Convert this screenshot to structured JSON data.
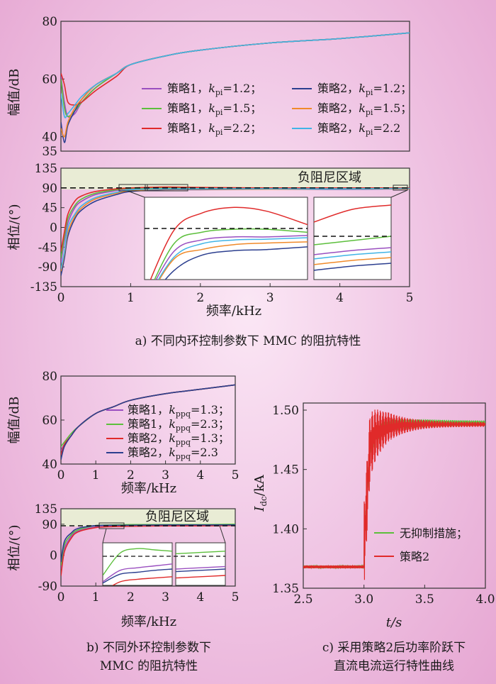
{
  "colors": {
    "purple": "#9a4fc0",
    "green": "#5cbf3c",
    "red": "#e02a2a",
    "navy": "#2c3f8f",
    "orange": "#f08a2a",
    "cyan": "#40b4e6",
    "band": "#e9ecd5"
  },
  "panel_a": {
    "caption": "a) 不同内环控制参数下 MMC 的阻抗特性",
    "mag": {
      "ylabel": "幅值/dB",
      "yticks": [
        "80",
        "60",
        "40",
        "35"
      ],
      "yvals": [
        80,
        60,
        40,
        35
      ]
    },
    "phase": {
      "ylabel": "相位/(°)",
      "yticks": [
        "135",
        "90",
        "45",
        "0",
        "-45",
        "-90",
        "-135"
      ],
      "yvals": [
        135,
        90,
        45,
        0,
        -45,
        -90,
        -135
      ],
      "band_label": "负阻尼区域"
    },
    "xticks": [
      "0",
      "1",
      "2",
      "3",
      "4",
      "5"
    ],
    "xlabel": "频率/kHz",
    "legend": [
      {
        "text": "策略1，",
        "sym": "k",
        "sub": "pi",
        "val": "=1.2；",
        "color": "purple"
      },
      {
        "text": "策略2，",
        "sym": "k",
        "sub": "pi",
        "val": "=1.2；",
        "color": "navy"
      },
      {
        "text": "策略1，",
        "sym": "k",
        "sub": "pi",
        "val": "=1.5；",
        "color": "green"
      },
      {
        "text": "策略2，",
        "sym": "k",
        "sub": "pi",
        "val": "=1.5；",
        "color": "orange"
      },
      {
        "text": "策略1，",
        "sym": "k",
        "sub": "pi",
        "val": "=2.2；",
        "color": "red"
      },
      {
        "text": "策略2，",
        "sym": "k",
        "sub": "pi",
        "val": "=2.2",
        "color": "cyan"
      }
    ]
  },
  "panel_b": {
    "caption_line1": "b) 不同外环控制参数下",
    "caption_line2": "MMC 的阻抗特性",
    "mag": {
      "ylabel": "幅值/dB",
      "yticks": [
        "80",
        "60",
        "40"
      ],
      "yvals": [
        80,
        60,
        40
      ]
    },
    "phase": {
      "ylabel": "相位/(°)",
      "yticks": [
        "135",
        "90",
        "0",
        "-90"
      ],
      "yvals": [
        135,
        90,
        0,
        -90
      ],
      "band_label": "负阻尼区域"
    },
    "xticks": [
      "0",
      "1",
      "2",
      "3",
      "4",
      "5"
    ],
    "xlabel": "频率/kHz",
    "legend": [
      {
        "text": "策略1，",
        "sym": "k",
        "sub": "ppq",
        "val": "=1.3；",
        "color": "purple"
      },
      {
        "text": "策略1，",
        "sym": "k",
        "sub": "ppq",
        "val": "=2.3；",
        "color": "green"
      },
      {
        "text": "策略2，",
        "sym": "k",
        "sub": "ppq",
        "val": "=1.3；",
        "color": "red"
      },
      {
        "text": "策略2，",
        "sym": "k",
        "sub": "ppq",
        "val": "=2.3",
        "color": "navy"
      }
    ]
  },
  "panel_c": {
    "caption_line1": "c) 采用策略2后功率阶跃下",
    "caption_line2": "直流电流运行特性曲线",
    "ylabel_main": "I",
    "ylabel_sub": "dc",
    "ylabel_unit": "/kA",
    "xlabel": "t/s",
    "yticks": [
      "1.50",
      "1.45",
      "1.40",
      "1.35"
    ],
    "xticks": [
      "2.5",
      "3.0",
      "3.5",
      "4.0"
    ],
    "legend": [
      {
        "text": "无抑制措施；",
        "color": "green"
      },
      {
        "text": "策略2",
        "color": "red"
      }
    ]
  },
  "chart_data": [
    {
      "type": "line",
      "xlabel": "频率/kHz",
      "ylabel": "幅值/dB",
      "ylim": [
        35,
        80
      ],
      "x": [
        0,
        0.05,
        0.1,
        0.2,
        0.3,
        0.5,
        0.8,
        1,
        1.5,
        2,
        3,
        4,
        5
      ],
      "series": [
        {
          "name": "策略1，kpi=1.2",
          "values": [
            61,
            52,
            47,
            48,
            52,
            57,
            62,
            65,
            68,
            70,
            72.5,
            74,
            76
          ]
        },
        {
          "name": "策略1，kpi=1.5",
          "values": [
            60,
            50,
            47,
            49,
            52,
            57,
            62,
            65,
            68,
            70,
            72.5,
            74,
            76
          ]
        },
        {
          "name": "策略1，kpi=2.2",
          "values": [
            62,
            58,
            52,
            51,
            52,
            56,
            61,
            65,
            68,
            70,
            72.5,
            74,
            76
          ]
        },
        {
          "name": "策略2，kpi=1.2",
          "values": [
            45,
            38,
            44,
            49,
            53,
            58,
            62,
            65,
            68,
            70,
            72.5,
            74,
            76
          ]
        },
        {
          "name": "策略2，kpi=1.5",
          "values": [
            43,
            40,
            45,
            50,
            53,
            58,
            62,
            65,
            68,
            70,
            72.5,
            74,
            76
          ]
        },
        {
          "name": "策略2，kpi=2.2",
          "values": [
            55,
            47,
            48,
            51,
            54,
            58,
            62,
            65,
            68,
            70,
            72.5,
            74,
            76
          ]
        }
      ]
    },
    {
      "type": "line",
      "xlabel": "频率/kHz",
      "ylabel": "相位/(°)",
      "ylim": [
        -135,
        135
      ],
      "x": [
        0,
        0.05,
        0.1,
        0.2,
        0.3,
        0.5,
        0.8,
        1,
        1.5,
        2,
        3,
        4,
        5
      ],
      "series": [
        {
          "name": "策略1，kpi=1.2",
          "values": [
            -80,
            -30,
            10,
            45,
            60,
            75,
            84,
            88,
            89,
            88,
            88,
            89,
            89
          ]
        },
        {
          "name": "策略1，kpi=1.5",
          "values": [
            -70,
            -20,
            20,
            50,
            65,
            78,
            86,
            89,
            90,
            89,
            89,
            89,
            90
          ]
        },
        {
          "name": "策略1，kpi=2.2",
          "values": [
            -55,
            -10,
            30,
            60,
            72,
            82,
            88,
            90,
            92,
            91,
            90,
            90,
            90
          ]
        },
        {
          "name": "策略2，kpi=1.2",
          "values": [
            -110,
            -70,
            -20,
            20,
            40,
            60,
            75,
            82,
            86,
            86,
            87,
            87,
            88
          ]
        },
        {
          "name": "策略2，kpi=1.5",
          "values": [
            -100,
            -60,
            -10,
            25,
            45,
            65,
            78,
            84,
            87,
            87,
            87,
            88,
            88
          ]
        },
        {
          "name": "策略2，kpi=2.2",
          "values": [
            -95,
            -55,
            0,
            30,
            50,
            68,
            80,
            86,
            88,
            88,
            88,
            88,
            89
          ]
        }
      ]
    },
    {
      "type": "line",
      "xlabel": "频率/kHz",
      "ylabel": "幅值/dB",
      "ylim": [
        40,
        80
      ],
      "x": [
        0,
        0.1,
        0.3,
        0.5,
        1,
        1.5,
        2,
        3,
        4,
        5
      ],
      "series": [
        {
          "name": "策略1，kppq=1.3",
          "values": [
            46,
            49,
            53,
            57,
            63,
            66,
            69,
            72,
            74,
            76
          ]
        },
        {
          "name": "策略1，kppq=2.3",
          "values": [
            48,
            50,
            54,
            57,
            63,
            66,
            69,
            72,
            74,
            76
          ]
        },
        {
          "name": "策略2，kppq=1.3",
          "values": [
            44,
            49,
            53,
            57,
            63,
            66,
            69,
            72,
            74,
            76
          ]
        },
        {
          "name": "策略2，kppq=2.3",
          "values": [
            42,
            48,
            53,
            57,
            63,
            66,
            69,
            72,
            74,
            76
          ]
        }
      ]
    },
    {
      "type": "line",
      "xlabel": "频率/kHz",
      "ylabel": "相位/(°)",
      "ylim": [
        -90,
        135
      ],
      "x": [
        0,
        0.1,
        0.3,
        0.5,
        1,
        1.5,
        2,
        3,
        4,
        5
      ],
      "series": [
        {
          "name": "策略1，kppq=1.3",
          "values": [
            -40,
            20,
            55,
            70,
            82,
            84,
            85,
            86,
            86,
            87
          ]
        },
        {
          "name": "策略1，kppq=2.3",
          "values": [
            -30,
            30,
            60,
            74,
            86,
            88,
            89,
            89,
            89,
            90
          ]
        },
        {
          "name": "策略2，kppq=1.3",
          "values": [
            -60,
            10,
            50,
            68,
            80,
            83,
            84,
            85,
            85,
            86
          ]
        },
        {
          "name": "策略2，kppq=2.3",
          "values": [
            -20,
            40,
            65,
            78,
            86,
            87,
            87,
            88,
            88,
            88
          ]
        }
      ]
    },
    {
      "type": "line",
      "xlabel": "t/s",
      "ylabel": "Idc/kA",
      "xlim": [
        2.5,
        4.0
      ],
      "ylim": [
        1.35,
        1.5
      ],
      "series": [
        {
          "name": "无抑制措施",
          "x": [
            2.5,
            3.0,
            3.001,
            3.05,
            3.1,
            3.2,
            3.3,
            3.5,
            4.0
          ],
          "values": [
            1.368,
            1.368,
            1.385,
            1.47,
            1.48,
            1.487,
            1.488,
            1.489,
            1.489
          ]
        },
        {
          "name": "策略2",
          "x": [
            2.5,
            3.0,
            3.001,
            3.05,
            3.1,
            3.2,
            3.3,
            3.5,
            4.0
          ],
          "values": [
            1.368,
            1.368,
            1.385,
            1.47,
            1.48,
            1.486,
            1.487,
            1.488,
            1.488
          ]
        }
      ]
    }
  ]
}
